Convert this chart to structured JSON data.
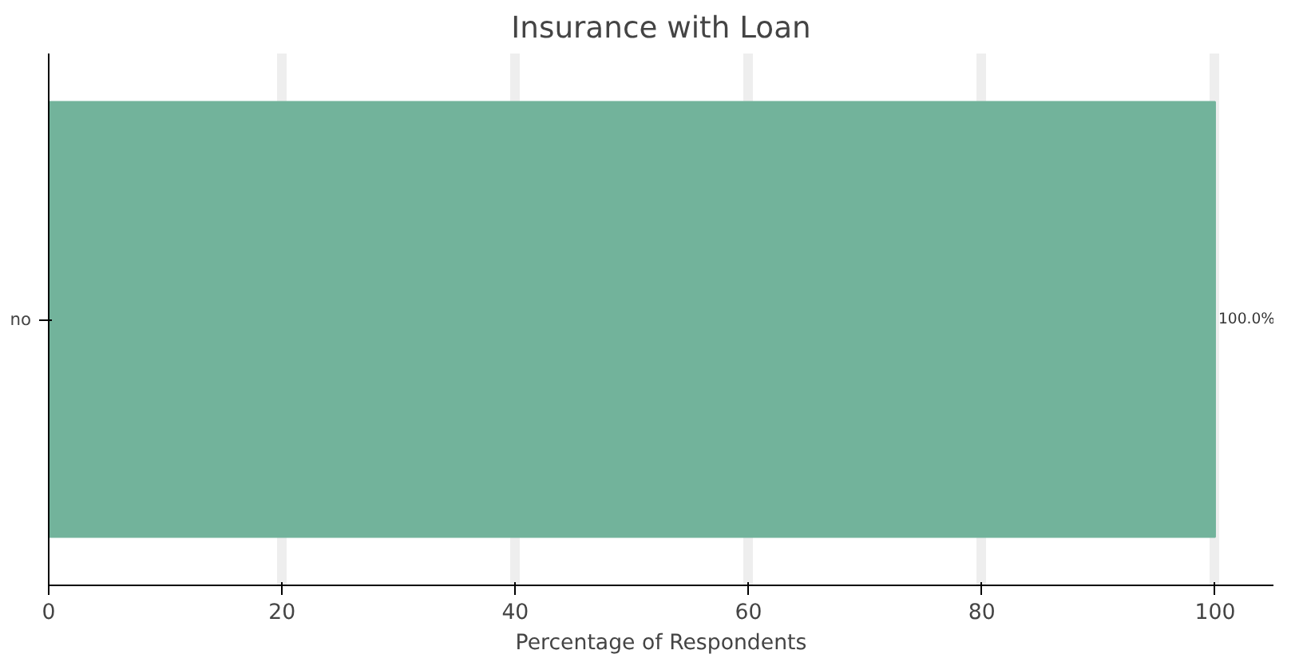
{
  "chart_data": {
    "type": "bar",
    "orientation": "horizontal",
    "title": "Insurance with Loan",
    "xlabel": "Percentage of Respondents",
    "categories": [
      "no"
    ],
    "values": [
      100
    ],
    "value_labels": [
      "100.0%"
    ],
    "color": "#72b39b",
    "xlim": [
      0,
      105
    ],
    "xticks": [
      0,
      20,
      40,
      60,
      80,
      100
    ],
    "grid": "x"
  }
}
